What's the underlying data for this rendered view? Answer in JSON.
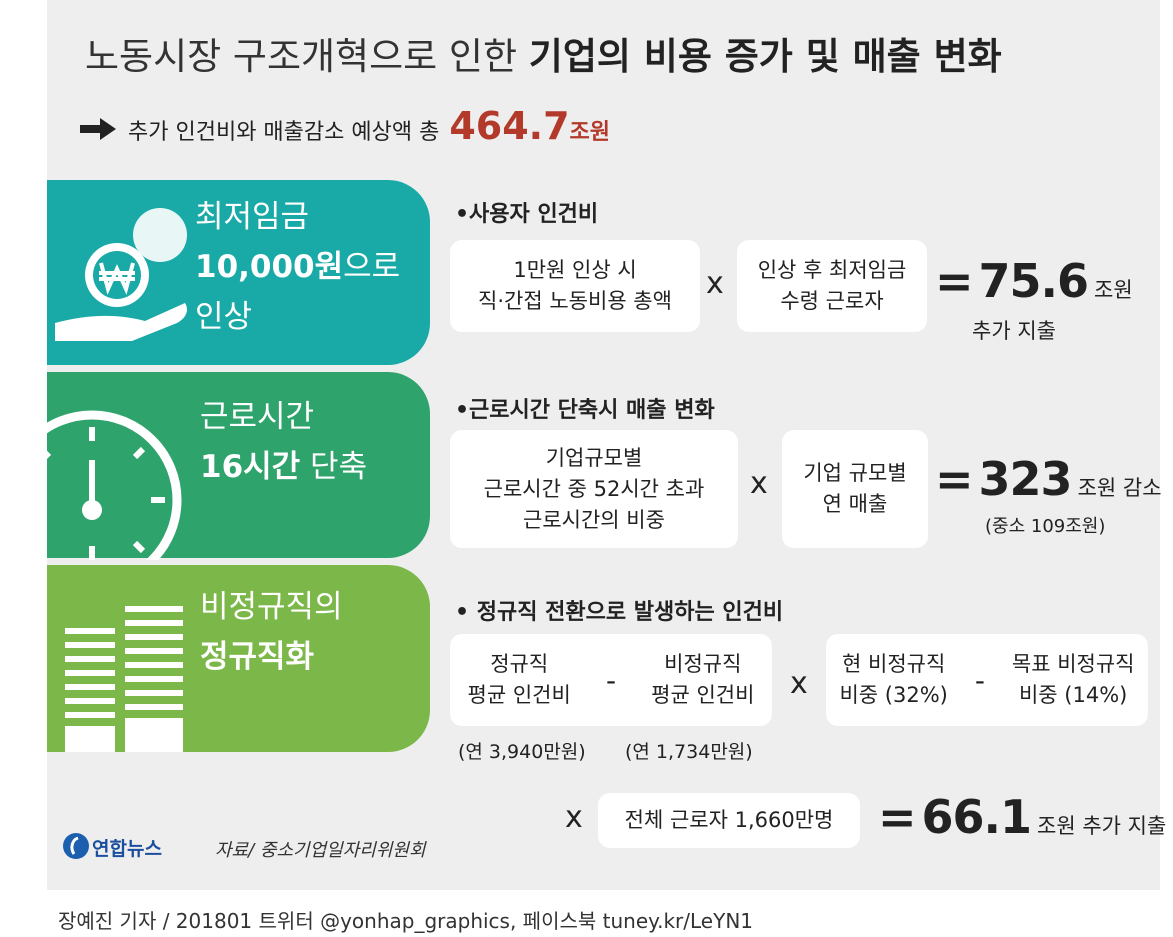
{
  "header": {
    "title_light": "노동시장 구조개혁으로 인한",
    "title_bold": "기업의 비용 증가 및 매출 변화",
    "summary_text": "추가 인건비와 매출감소 예상액 총",
    "summary_value": "464.7",
    "summary_unit": "조원"
  },
  "sections": [
    {
      "tab_line1": "최저임금",
      "tab_bold": "10,000원",
      "tab_rest": "으로",
      "tab_line3": "인상",
      "heading": "•사용자 인건비",
      "box_a": [
        "1만원 인상 시",
        "직·간접 노동비용 총액"
      ],
      "operator": "x",
      "box_b": [
        "인상 후 최저임금",
        "수령 근로자"
      ],
      "equals": "=",
      "result_value": "75.6",
      "result_unit": "조원",
      "result_note": "추가 지출"
    },
    {
      "tab_line1": "근로시간",
      "tab_bold": "16시간",
      "tab_rest": "단축",
      "heading": "•근로시간 단축시 매출 변화",
      "box_a": [
        "기업규모별",
        "근로시간 중 52시간 초과",
        "근로시간의 비중"
      ],
      "operator": "x",
      "box_b": [
        "기업 규모별",
        "연 매출"
      ],
      "equals": "=",
      "result_value": "323",
      "result_unit": "조원 감소",
      "result_note": "(중소 109조원)"
    },
    {
      "tab_line1": "비정규직의",
      "tab_bold": "정규직화",
      "heading": "• 정규직 전환으로 발생하는 인건비",
      "box_a_left": [
        "정규직",
        "평균 인건비"
      ],
      "box_a_minus": "-",
      "box_a_right": [
        "비정규직",
        "평균 인건비"
      ],
      "notes": [
        "(연 3,940만원)",
        "(연 1,734만원)"
      ],
      "operator": "x",
      "box_b_left": [
        "현 비정규직",
        "비중 (32%)"
      ],
      "box_b_minus": "-",
      "box_b_right": [
        "목표 비정규직",
        "비중 (14%)"
      ]
    }
  ],
  "footer": {
    "operator": "x",
    "box": "전체 근로자 1,660만명",
    "equals": "=",
    "result_value": "66.1",
    "result_unit": "조원 추가 지출",
    "logo": "연합뉴스",
    "source": "자료/ 중소기업일자리위원회",
    "credit": "장예진 기자 / 201801 트위터 @yonhap_graphics, 페이스북 tuney.kr/LeYN1"
  }
}
